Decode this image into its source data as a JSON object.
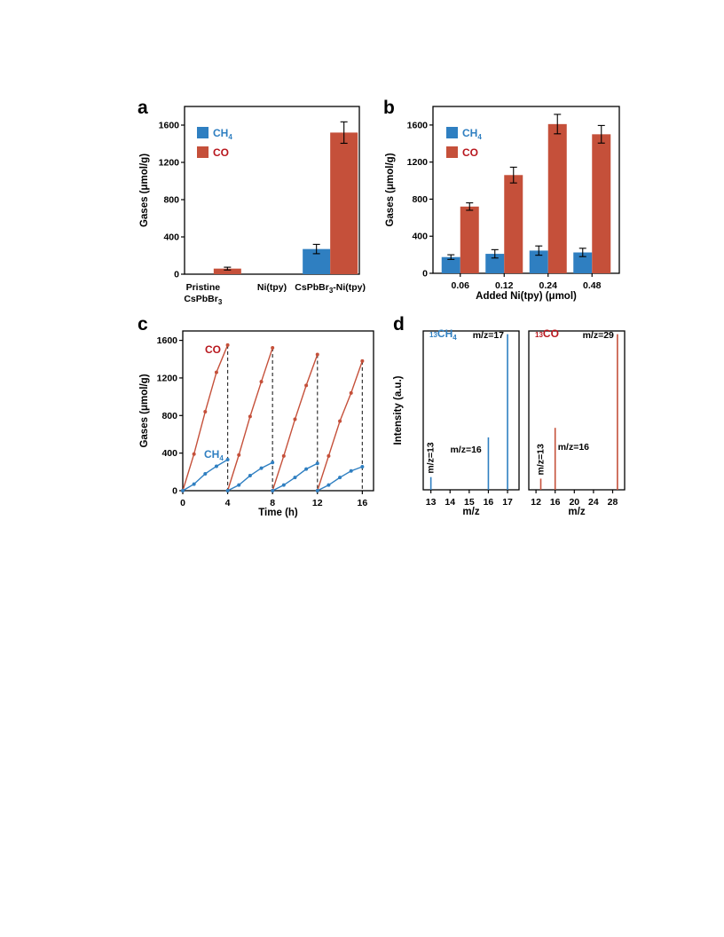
{
  "figure": {
    "panels": [
      "a",
      "b",
      "c",
      "d"
    ]
  },
  "colors": {
    "ch4": "#2F7FC1",
    "co": "#C5503A",
    "co_text": "#B8171E",
    "ch4_text": "#2F7FC1",
    "dashed": "#333333"
  },
  "chart_data": [
    {
      "panel": "a",
      "type": "bar",
      "ylabel": "Gases (μmol/g)",
      "ylim": [
        0,
        1800
      ],
      "yticks": [
        0,
        400,
        800,
        1200,
        1600
      ],
      "categories": [
        "Pristine CsPbBr3",
        "Ni(tpy)",
        "CsPbBr3-Ni(tpy)"
      ],
      "category_lines": [
        [
          "Pristine",
          "CsPbBr3"
        ],
        [
          "Ni(tpy)"
        ],
        [
          "CsPbBr3-Ni(tpy)"
        ]
      ],
      "series": [
        {
          "name": "CH4",
          "values": [
            0,
            0,
            270
          ],
          "errors": [
            0,
            0,
            50
          ]
        },
        {
          "name": "CO",
          "values": [
            60,
            0,
            1520
          ],
          "errors": [
            15,
            0,
            115
          ]
        }
      ],
      "legend": [
        "CH4",
        "CO"
      ],
      "legend_position": "top-left"
    },
    {
      "panel": "b",
      "type": "bar",
      "ylabel": "Gases (μmol/g)",
      "xlabel": "Added Ni(tpy) (μmol)",
      "ylim": [
        0,
        1800
      ],
      "yticks": [
        0,
        400,
        800,
        1200,
        1600
      ],
      "categories": [
        "0.06",
        "0.12",
        "0.24",
        "0.48"
      ],
      "series": [
        {
          "name": "CH4",
          "values": [
            175,
            210,
            245,
            225
          ],
          "errors": [
            25,
            45,
            50,
            45
          ]
        },
        {
          "name": "CO",
          "values": [
            720,
            1060,
            1610,
            1500
          ],
          "errors": [
            40,
            85,
            105,
            95
          ]
        }
      ],
      "legend": [
        "CH4",
        "CO"
      ],
      "legend_position": "top-left"
    },
    {
      "panel": "c",
      "type": "line",
      "ylabel": "Gases (μmol/g)",
      "xlabel": "Time (h)",
      "xlim": [
        0,
        17
      ],
      "ylim": [
        0,
        1700
      ],
      "xticks": [
        0,
        4,
        8,
        12,
        16
      ],
      "yticks": [
        0,
        400,
        800,
        1200,
        1600
      ],
      "labels": {
        "co": "CO",
        "ch4": "CH4"
      },
      "cycle_ends": [
        4,
        8,
        12,
        16
      ],
      "series": [
        {
          "name": "CO",
          "x": [
            0,
            1,
            2,
            3,
            4,
            4,
            5,
            6,
            7,
            8,
            8,
            9,
            10,
            11,
            12,
            12,
            13,
            14,
            15,
            16
          ],
          "y": [
            0,
            390,
            840,
            1260,
            1550,
            0,
            380,
            790,
            1160,
            1520,
            0,
            370,
            760,
            1120,
            1450,
            0,
            370,
            740,
            1040,
            1380
          ],
          "segments": 4
        },
        {
          "name": "CH4",
          "x": [
            0,
            1,
            2,
            3,
            4,
            4,
            5,
            6,
            7,
            8,
            8,
            9,
            10,
            11,
            12,
            12,
            13,
            14,
            15,
            16
          ],
          "y": [
            0,
            70,
            180,
            260,
            330,
            0,
            60,
            160,
            240,
            300,
            0,
            60,
            140,
            230,
            290,
            0,
            60,
            140,
            210,
            255
          ],
          "segments": 4
        }
      ]
    },
    {
      "panel": "d",
      "type": "bar",
      "ylabel": "Intensity (a.u.)",
      "subplots": [
        {
          "label": "CH4",
          "label_superscript": "13",
          "xlabel": "m/z",
          "xlim": [
            12.6,
            17.6
          ],
          "xticks": [
            13,
            14,
            15,
            16,
            17
          ],
          "peaks": [
            {
              "x": 13,
              "height": 0.08,
              "label": "m/z=13"
            },
            {
              "x": 16,
              "height": 0.33,
              "label": "m/z=16"
            },
            {
              "x": 17,
              "height": 0.98,
              "label": "m/z=17"
            }
          ]
        },
        {
          "label": "CO",
          "label_superscript": "13",
          "xlabel": "m/z",
          "xlim": [
            10.5,
            30.5
          ],
          "xticks": [
            12,
            16,
            20,
            24,
            28
          ],
          "peaks": [
            {
              "x": 13,
              "height": 0.07,
              "label": "m/z=13"
            },
            {
              "x": 16,
              "height": 0.39,
              "label": "m/z=16"
            },
            {
              "x": 29,
              "height": 0.98,
              "label": "m/z=29"
            }
          ]
        }
      ]
    }
  ]
}
